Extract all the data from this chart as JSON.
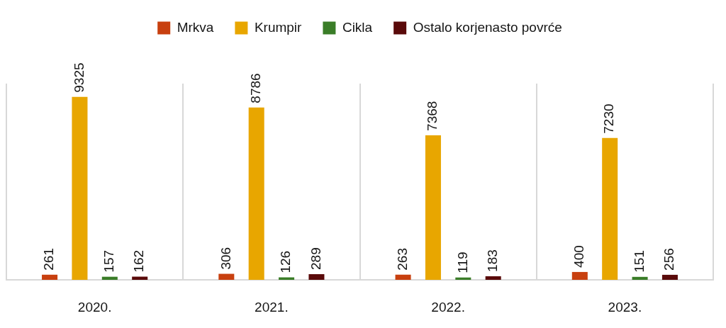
{
  "chart_data": {
    "type": "bar",
    "categories": [
      "2020.",
      "2021.",
      "2022.",
      "2023."
    ],
    "series": [
      {
        "name": "Mrkva",
        "color": "#c8400f",
        "values": [
          261,
          306,
          263,
          400
        ]
      },
      {
        "name": "Krumpir",
        "color": "#e8a600",
        "values": [
          9325,
          8786,
          7368,
          7230
        ]
      },
      {
        "name": "Cikla",
        "color": "#3a7d28",
        "values": [
          157,
          126,
          119,
          151
        ]
      },
      {
        "name": "Ostalo korjenasto povrće",
        "color": "#5a0a0a",
        "values": [
          162,
          289,
          183,
          256
        ]
      }
    ],
    "ylim": [
      0,
      10000
    ],
    "data_labels": true,
    "grid": "x",
    "legend": "top",
    "tick_labels": "x"
  }
}
